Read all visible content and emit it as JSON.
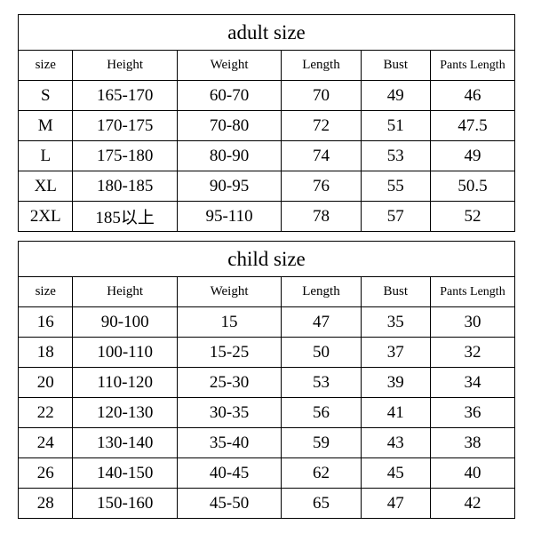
{
  "adult": {
    "title": "adult size",
    "columns": [
      "size",
      "Height",
      "Weight",
      "Length",
      "Bust",
      "Pants Length"
    ],
    "rows": [
      [
        "S",
        "165-170",
        "60-70",
        "70",
        "49",
        "46"
      ],
      [
        "M",
        "170-175",
        "70-80",
        "72",
        "51",
        "47.5"
      ],
      [
        "L",
        "175-180",
        "80-90",
        "74",
        "53",
        "49"
      ],
      [
        "XL",
        "180-185",
        "90-95",
        "76",
        "55",
        "50.5"
      ],
      [
        "2XL",
        "185以上",
        "95-110",
        "78",
        "57",
        "52"
      ]
    ]
  },
  "child": {
    "title": "child size",
    "columns": [
      "size",
      "Height",
      "Weight",
      "Length",
      "Bust",
      "Pants Length"
    ],
    "rows": [
      [
        "16",
        "90-100",
        "15",
        "47",
        "35",
        "30"
      ],
      [
        "18",
        "100-110",
        "15-25",
        "50",
        "37",
        "32"
      ],
      [
        "20",
        "110-120",
        "25-30",
        "53",
        "39",
        "34"
      ],
      [
        "22",
        "120-130",
        "30-35",
        "56",
        "41",
        "36"
      ],
      [
        "24",
        "130-140",
        "35-40",
        "59",
        "43",
        "38"
      ],
      [
        "26",
        "140-150",
        "40-45",
        "62",
        "45",
        "40"
      ],
      [
        "28",
        "150-160",
        "45-50",
        "65",
        "47",
        "42"
      ]
    ]
  },
  "style": {
    "border_color": "#000000",
    "bg_color": "#ffffff",
    "text_color": "#000000",
    "title_fontsize": 23,
    "header_fontsize": 15,
    "data_fontsize": 19,
    "font_family": "Times New Roman / SimSun serif",
    "col_widths_pct": [
      11,
      21,
      21,
      16,
      14,
      17
    ]
  }
}
